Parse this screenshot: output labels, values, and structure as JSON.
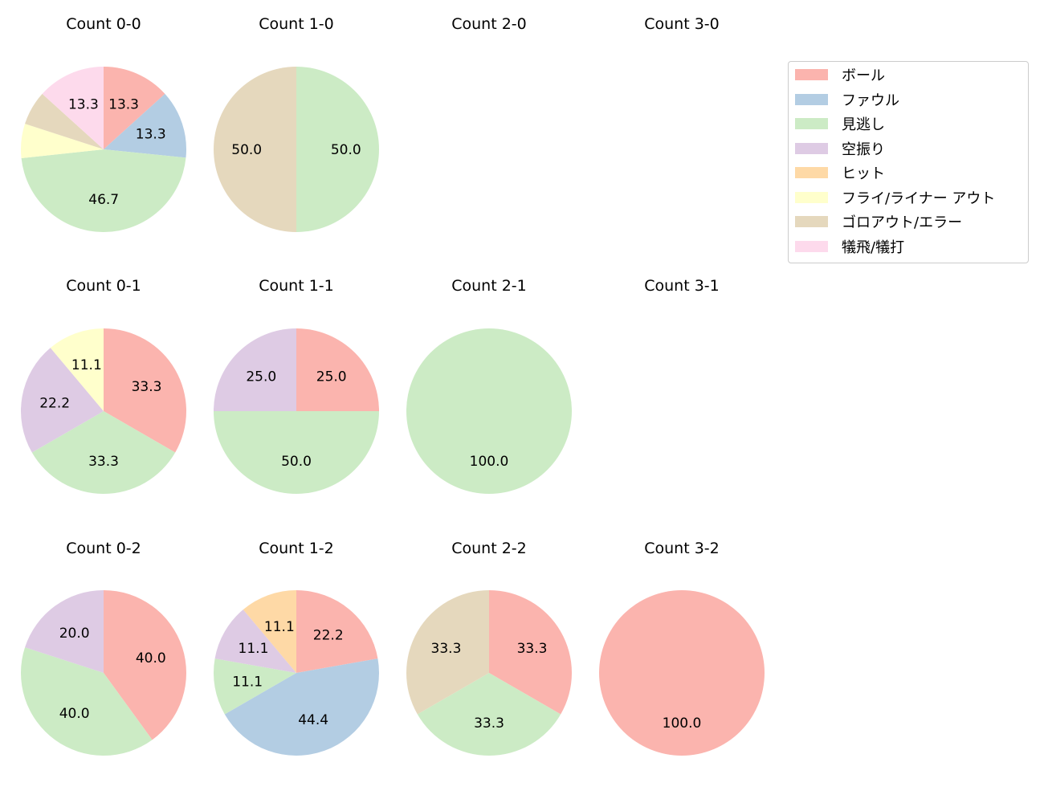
{
  "colors": [
    "#fbb4ae",
    "#b3cde3",
    "#ccebc5",
    "#decbe4",
    "#fed9a6",
    "#ffffcc",
    "#e5d8bd",
    "#fddaec"
  ],
  "legend": [
    "ボール",
    "ファウル",
    "見逃し",
    "空振り",
    "ヒット",
    "フライ/ライナー アウト",
    "ゴロアウト/エラー",
    "犠飛/犠打"
  ],
  "chart_data": [
    {
      "type": "pie",
      "title": "Count 0-0",
      "values": [
        13.3,
        13.3,
        46.7,
        0,
        0,
        6.7,
        6.7,
        13.3
      ]
    },
    {
      "type": "pie",
      "title": "Count 1-0",
      "values": [
        0,
        0,
        50.0,
        0,
        0,
        0,
        50.0,
        0
      ]
    },
    {
      "type": "pie",
      "title": "Count 2-0",
      "values": []
    },
    {
      "type": "pie",
      "title": "Count 3-0",
      "values": []
    },
    {
      "type": "pie",
      "title": "Count 0-1",
      "values": [
        33.3,
        0,
        33.3,
        22.2,
        0,
        11.1,
        0,
        0
      ]
    },
    {
      "type": "pie",
      "title": "Count 1-1",
      "values": [
        25.0,
        0,
        50.0,
        25.0,
        0,
        0,
        0,
        0
      ]
    },
    {
      "type": "pie",
      "title": "Count 2-1",
      "values": [
        0,
        0,
        100.0,
        0,
        0,
        0,
        0,
        0
      ]
    },
    {
      "type": "pie",
      "title": "Count 3-1",
      "values": []
    },
    {
      "type": "pie",
      "title": "Count 0-2",
      "values": [
        40.0,
        0,
        40.0,
        20.0,
        0,
        0,
        0,
        0
      ]
    },
    {
      "type": "pie",
      "title": "Count 1-2",
      "values": [
        22.2,
        44.4,
        11.1,
        11.1,
        11.1,
        0,
        0,
        0
      ]
    },
    {
      "type": "pie",
      "title": "Count 2-2",
      "values": [
        33.3,
        0,
        33.3,
        0,
        0,
        0,
        33.3,
        0
      ]
    },
    {
      "type": "pie",
      "title": "Count 3-2",
      "values": [
        100.0,
        0,
        0,
        0,
        0,
        0,
        0,
        0
      ]
    }
  ]
}
